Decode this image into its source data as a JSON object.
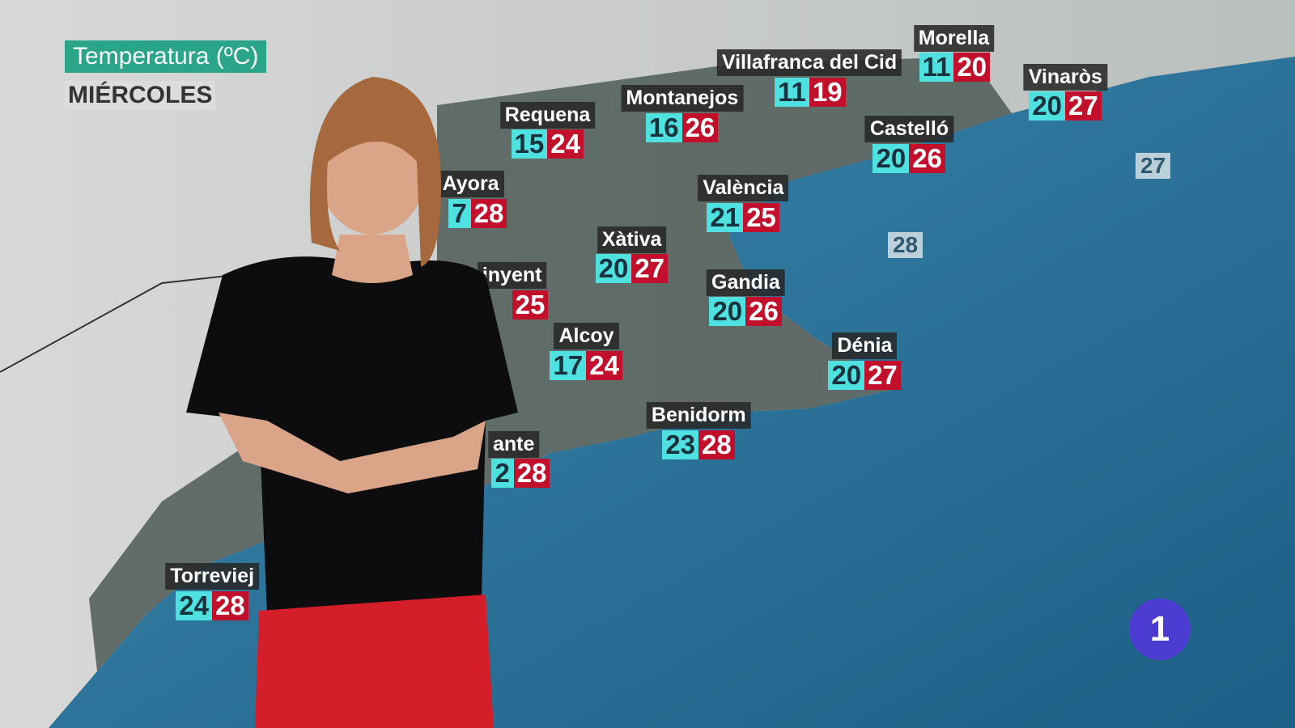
{
  "header": {
    "title": "Temperatura (ºC)",
    "day": "MIÉRCOLES"
  },
  "cities": [
    {
      "name": "Morella",
      "min": 11,
      "max": 20
    },
    {
      "name": "Villafranca del Cid",
      "min": 11,
      "max": 19
    },
    {
      "name": "Vinaròs",
      "min": 20,
      "max": 27
    },
    {
      "name": "Montanejos",
      "min": 16,
      "max": 26
    },
    {
      "name": "Requena",
      "min": 15,
      "max": 24
    },
    {
      "name": "Castelló",
      "min": 20,
      "max": 26
    },
    {
      "name": "València",
      "min": 21,
      "max": 25
    },
    {
      "name": "Ayora",
      "min": 7,
      "max": 28
    },
    {
      "name": "inyent",
      "max": 25
    },
    {
      "name": "Xàtiva",
      "min": 20,
      "max": 27
    },
    {
      "name": "Gandia",
      "min": 20,
      "max": 26
    },
    {
      "name": "Alcoy",
      "min": 17,
      "max": 24
    },
    {
      "name": "Dénia",
      "min": 20,
      "max": 27
    },
    {
      "name": "Benidorm",
      "min": 23,
      "max": 28
    },
    {
      "name": "ante",
      "min": 2,
      "max": 28
    },
    {
      "name": "Torreviej",
      "min": 24,
      "max": 28
    }
  ],
  "sea_temperatures": [
    27,
    28
  ],
  "logo": "1"
}
